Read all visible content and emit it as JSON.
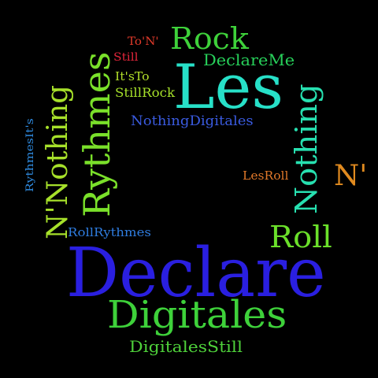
{
  "background": "#000000",
  "words": [
    {
      "id": "w-les",
      "text": "Les",
      "color": "#27e0c8",
      "rotated": false
    },
    {
      "id": "w-declare",
      "text": "Declare",
      "color": "#2a1fe0",
      "rotated": false
    },
    {
      "id": "w-rythmes",
      "text": "Rythmes",
      "color": "#7ae02a",
      "rotated": true
    },
    {
      "id": "w-nnothing",
      "text": "N'Nothing",
      "color": "#a6e02a",
      "rotated": true
    },
    {
      "id": "w-nothing",
      "text": "Nothing",
      "color": "#27e0b0",
      "rotated": true
    },
    {
      "id": "w-rock",
      "text": "Rock",
      "color": "#3ed13a",
      "rotated": false
    },
    {
      "id": "w-digitales",
      "text": "Digitales",
      "color": "#3ed13a",
      "rotated": false
    },
    {
      "id": "w-roll",
      "text": "Roll",
      "color": "#6be02a",
      "rotated": false
    },
    {
      "id": "w-n",
      "text": "N'",
      "color": "#e08a1f",
      "rotated": false
    },
    {
      "id": "w-declareme",
      "text": "DeclareMe",
      "color": "#27d05a",
      "rotated": false
    },
    {
      "id": "w-nothingdigitales",
      "text": "NothingDigitales",
      "color": "#3a5be0",
      "rotated": false
    },
    {
      "id": "w-digitalesstill",
      "text": "DigitalesStill",
      "color": "#4ed13a",
      "rotated": false
    },
    {
      "id": "w-rollrythmes",
      "text": "RollRythmes",
      "color": "#2f7de0",
      "rotated": false
    },
    {
      "id": "w-stillrock",
      "text": "StillRock",
      "color": "#a6e02a",
      "rotated": false
    },
    {
      "id": "w-itsto",
      "text": "It'sTo",
      "color": "#b3e02a",
      "rotated": false
    },
    {
      "id": "w-lesroll",
      "text": "LesRoll",
      "color": "#e0782a",
      "rotated": false
    },
    {
      "id": "w-rythmesits",
      "text": "RythmesIt's",
      "color": "#2f8be0",
      "rotated": true
    },
    {
      "id": "w-ton",
      "text": "To'N'",
      "color": "#e03a2a",
      "rotated": false
    },
    {
      "id": "w-still",
      "text": "Still",
      "color": "#e0253a",
      "rotated": false
    }
  ]
}
